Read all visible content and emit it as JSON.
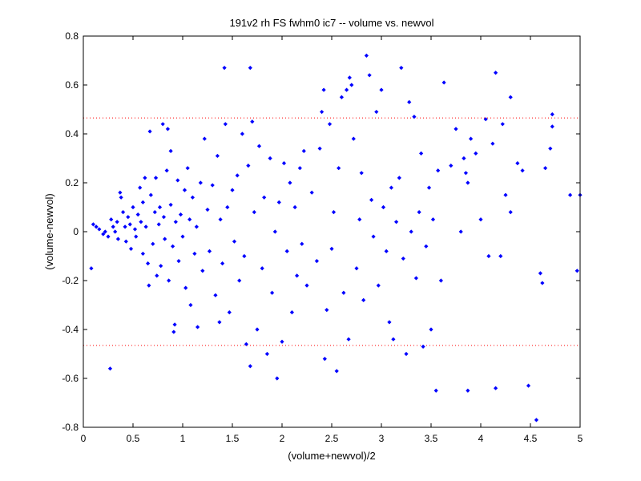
{
  "chart_data": {
    "type": "scatter",
    "title": "191v2 rh FS fwhm0 ic7 -- volume vs. newvol",
    "xlabel": "(volume+newvol)/2",
    "ylabel": "(volume-newvol)",
    "xlim": [
      0,
      5
    ],
    "ylim": [
      -0.8,
      0.8
    ],
    "xticks": [
      "0",
      "0.5",
      "1",
      "1.5",
      "2",
      "2.5",
      "3",
      "3.5",
      "4",
      "4.5",
      "5"
    ],
    "yticks": [
      "0.8",
      "0.6",
      "0.4",
      "0.2",
      "0",
      "-0.2",
      "-0.4",
      "-0.6",
      "-0.8"
    ],
    "grid": false,
    "marker_color": "#0000ff",
    "reference_line_color": "#ff0000",
    "reference_lines": [
      {
        "y": 0.465,
        "style": "dotted"
      },
      {
        "y": -0.465,
        "style": "dotted"
      }
    ],
    "series": [
      {
        "points": [
          [
            0.08,
            -0.15
          ],
          [
            0.27,
            -0.56
          ],
          [
            0.1,
            0.03
          ],
          [
            0.13,
            0.02
          ],
          [
            0.16,
            0.01
          ],
          [
            0.2,
            -0.01
          ],
          [
            0.22,
            0.0
          ],
          [
            0.25,
            -0.02
          ],
          [
            0.28,
            0.05
          ],
          [
            0.3,
            0.02
          ],
          [
            0.32,
            0.0
          ],
          [
            0.34,
            0.04
          ],
          [
            0.35,
            -0.03
          ],
          [
            0.37,
            0.16
          ],
          [
            0.38,
            0.14
          ],
          [
            0.4,
            0.08
          ],
          [
            0.42,
            0.02
          ],
          [
            0.43,
            -0.04
          ],
          [
            0.45,
            0.06
          ],
          [
            0.47,
            0.03
          ],
          [
            0.48,
            -0.07
          ],
          [
            0.5,
            0.1
          ],
          [
            0.52,
            0.01
          ],
          [
            0.53,
            -0.02
          ],
          [
            0.55,
            0.07
          ],
          [
            0.57,
            0.18
          ],
          [
            0.58,
            0.04
          ],
          [
            0.6,
            -0.09
          ],
          [
            0.6,
            0.12
          ],
          [
            0.62,
            0.22
          ],
          [
            0.63,
            0.02
          ],
          [
            0.65,
            -0.13
          ],
          [
            0.66,
            -0.22
          ],
          [
            0.67,
            0.41
          ],
          [
            0.68,
            0.15
          ],
          [
            0.7,
            -0.05
          ],
          [
            0.72,
            0.08
          ],
          [
            0.73,
            0.22
          ],
          [
            0.74,
            -0.18
          ],
          [
            0.76,
            0.03
          ],
          [
            0.77,
            0.1
          ],
          [
            0.78,
            -0.14
          ],
          [
            0.8,
            0.44
          ],
          [
            0.81,
            0.06
          ],
          [
            0.82,
            -0.03
          ],
          [
            0.84,
            0.25
          ],
          [
            0.85,
            0.42
          ],
          [
            0.86,
            -0.2
          ],
          [
            0.88,
            0.11
          ],
          [
            0.88,
            0.33
          ],
          [
            0.9,
            -0.06
          ],
          [
            0.91,
            -0.41
          ],
          [
            0.92,
            -0.38
          ],
          [
            0.93,
            0.04
          ],
          [
            0.95,
            0.21
          ],
          [
            0.96,
            -0.12
          ],
          [
            0.98,
            0.07
          ],
          [
            1.0,
            -0.02
          ],
          [
            1.02,
            0.17
          ],
          [
            1.03,
            -0.23
          ],
          [
            1.05,
            0.26
          ],
          [
            1.07,
            0.05
          ],
          [
            1.08,
            -0.3
          ],
          [
            1.1,
            0.14
          ],
          [
            1.12,
            -0.09
          ],
          [
            1.14,
            0.02
          ],
          [
            1.15,
            -0.39
          ],
          [
            1.18,
            0.2
          ],
          [
            1.2,
            -0.16
          ],
          [
            1.22,
            0.38
          ],
          [
            1.25,
            0.09
          ],
          [
            1.27,
            -0.08
          ],
          [
            1.3,
            0.19
          ],
          [
            1.33,
            -0.26
          ],
          [
            1.35,
            0.31
          ],
          [
            1.37,
            -0.37
          ],
          [
            1.38,
            0.05
          ],
          [
            1.4,
            -0.13
          ],
          [
            1.42,
            0.67
          ],
          [
            1.43,
            0.44
          ],
          [
            1.45,
            0.1
          ],
          [
            1.47,
            -0.33
          ],
          [
            1.5,
            0.17
          ],
          [
            1.52,
            -0.04
          ],
          [
            1.55,
            0.23
          ],
          [
            1.57,
            -0.2
          ],
          [
            1.6,
            0.4
          ],
          [
            1.62,
            -0.1
          ],
          [
            1.64,
            -0.46
          ],
          [
            1.66,
            0.27
          ],
          [
            1.68,
            0.67
          ],
          [
            1.68,
            -0.55
          ],
          [
            1.7,
            0.45
          ],
          [
            1.72,
            0.08
          ],
          [
            1.75,
            -0.4
          ],
          [
            1.77,
            0.35
          ],
          [
            1.8,
            -0.15
          ],
          [
            1.82,
            0.14
          ],
          [
            1.85,
            -0.5
          ],
          [
            1.88,
            0.3
          ],
          [
            1.9,
            -0.25
          ],
          [
            1.93,
            0.0
          ],
          [
            1.95,
            -0.6
          ],
          [
            1.97,
            0.12
          ],
          [
            2.0,
            -0.45
          ],
          [
            2.02,
            0.28
          ],
          [
            2.05,
            -0.08
          ],
          [
            2.08,
            0.2
          ],
          [
            2.1,
            -0.33
          ],
          [
            2.13,
            0.1
          ],
          [
            2.15,
            -0.18
          ],
          [
            2.18,
            0.26
          ],
          [
            2.2,
            -0.05
          ],
          [
            2.22,
            0.33
          ],
          [
            2.25,
            -0.22
          ],
          [
            2.3,
            0.16
          ],
          [
            2.35,
            -0.12
          ],
          [
            2.38,
            0.34
          ],
          [
            2.4,
            0.49
          ],
          [
            2.42,
            0.58
          ],
          [
            2.43,
            -0.52
          ],
          [
            2.45,
            -0.32
          ],
          [
            2.48,
            0.44
          ],
          [
            2.5,
            -0.07
          ],
          [
            2.52,
            0.08
          ],
          [
            2.55,
            -0.57
          ],
          [
            2.57,
            0.26
          ],
          [
            2.6,
            0.55
          ],
          [
            2.62,
            -0.25
          ],
          [
            2.65,
            0.58
          ],
          [
            2.67,
            -0.44
          ],
          [
            2.68,
            0.63
          ],
          [
            2.7,
            0.6
          ],
          [
            2.72,
            0.38
          ],
          [
            2.75,
            -0.15
          ],
          [
            2.78,
            0.05
          ],
          [
            2.8,
            0.24
          ],
          [
            2.82,
            -0.28
          ],
          [
            2.85,
            0.72
          ],
          [
            2.88,
            0.64
          ],
          [
            2.9,
            0.13
          ],
          [
            2.92,
            -0.02
          ],
          [
            2.95,
            0.49
          ],
          [
            2.97,
            -0.22
          ],
          [
            3.0,
            0.58
          ],
          [
            3.02,
            0.1
          ],
          [
            3.05,
            -0.08
          ],
          [
            3.08,
            -0.37
          ],
          [
            3.1,
            0.18
          ],
          [
            3.12,
            -0.44
          ],
          [
            3.15,
            0.04
          ],
          [
            3.18,
            0.22
          ],
          [
            3.2,
            0.67
          ],
          [
            3.22,
            -0.11
          ],
          [
            3.25,
            -0.5
          ],
          [
            3.28,
            0.53
          ],
          [
            3.3,
            0.0
          ],
          [
            3.33,
            0.47
          ],
          [
            3.35,
            -0.19
          ],
          [
            3.38,
            0.08
          ],
          [
            3.4,
            0.32
          ],
          [
            3.42,
            -0.47
          ],
          [
            3.45,
            -0.06
          ],
          [
            3.48,
            0.18
          ],
          [
            3.5,
            -0.4
          ],
          [
            3.52,
            0.05
          ],
          [
            3.55,
            -0.65
          ],
          [
            3.57,
            0.25
          ],
          [
            3.6,
            -0.2
          ],
          [
            3.63,
            0.61
          ],
          [
            3.7,
            0.27
          ],
          [
            3.75,
            0.42
          ],
          [
            3.8,
            0.0
          ],
          [
            3.83,
            0.3
          ],
          [
            3.85,
            0.24
          ],
          [
            3.87,
            0.2
          ],
          [
            3.87,
            -0.65
          ],
          [
            3.9,
            0.38
          ],
          [
            3.95,
            0.32
          ],
          [
            4.0,
            0.05
          ],
          [
            4.05,
            0.46
          ],
          [
            4.08,
            -0.1
          ],
          [
            4.12,
            0.36
          ],
          [
            4.15,
            0.65
          ],
          [
            4.15,
            -0.64
          ],
          [
            4.2,
            -0.1
          ],
          [
            4.22,
            0.44
          ],
          [
            4.25,
            0.15
          ],
          [
            4.3,
            0.55
          ],
          [
            4.3,
            0.08
          ],
          [
            4.37,
            0.28
          ],
          [
            4.42,
            0.25
          ],
          [
            4.48,
            -0.63
          ],
          [
            4.56,
            -0.77
          ],
          [
            4.6,
            -0.17
          ],
          [
            4.62,
            -0.21
          ],
          [
            4.65,
            0.26
          ],
          [
            4.7,
            0.34
          ],
          [
            4.72,
            0.48
          ],
          [
            4.72,
            0.43
          ],
          [
            4.9,
            0.15
          ],
          [
            4.97,
            -0.16
          ],
          [
            5.0,
            0.15
          ]
        ]
      }
    ]
  }
}
